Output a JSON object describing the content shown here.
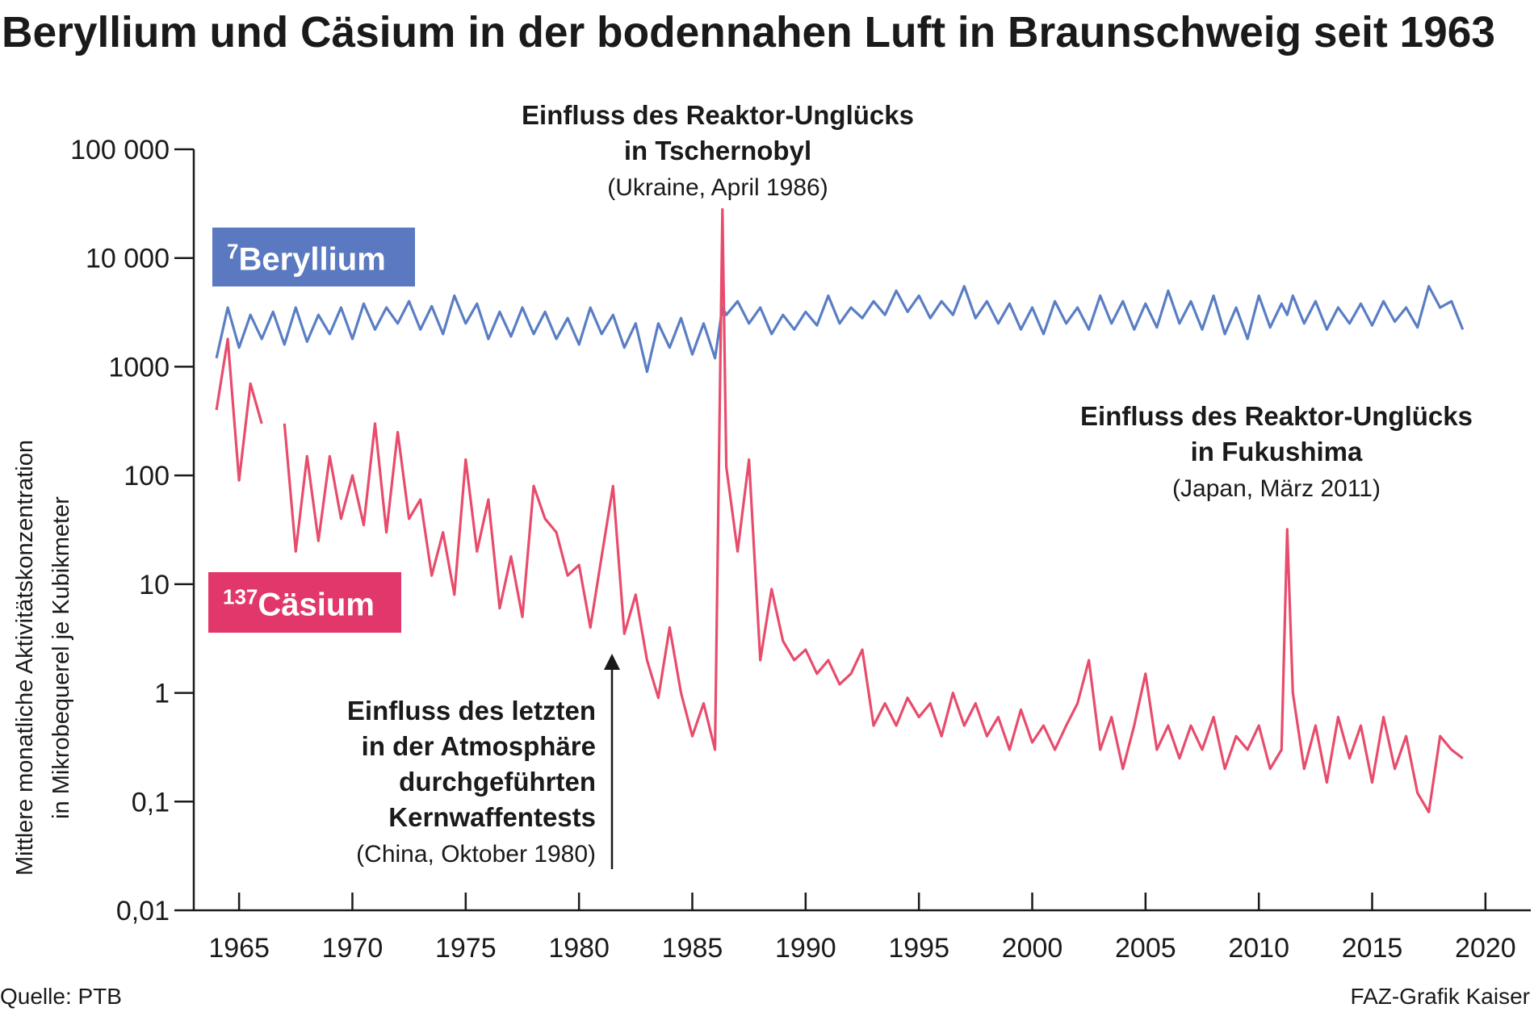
{
  "chart_data": {
    "type": "line",
    "title": "Beryllium und Cäsium in der bodennahen Luft in Braunschweig seit 1963",
    "y_label": [
      "Mittlere monatliche Aktivitätskonzentration",
      "in Mikrobequerel je Kubikmeter"
    ],
    "source": "Quelle: PTB",
    "credit": "FAZ-Grafik Kaiser",
    "log_y": true,
    "xlim": [
      1963,
      2022
    ],
    "xticks": [
      1965,
      1970,
      1975,
      1980,
      1985,
      1990,
      1995,
      2000,
      2005,
      2010,
      2015,
      2020
    ],
    "ylim": [
      0.01,
      100000
    ],
    "yticks": [
      {
        "value": 100000,
        "label": "100 000"
      },
      {
        "value": 10000,
        "label": "10 000"
      },
      1000,
      100,
      10,
      1,
      {
        "value": 0.1,
        "label": "0,1"
      },
      {
        "value": 0.01,
        "label": "0,01"
      }
    ],
    "annotations": [
      {
        "lines": [
          "Einfluss des Reaktor-Unglücks",
          "in Tschernobyl"
        ],
        "note": "(Ukraine, April 1986)"
      },
      {
        "lines": [
          "Einfluss des Reaktor-Unglücks",
          "in Fukushima"
        ],
        "note": "(Japan, März 2011)"
      },
      {
        "lines": [
          "Einfluss des letzten",
          "in der Atmosphäre",
          "durchgeführten",
          "Kernwaffentests"
        ],
        "note": "(China, Oktober 1980)"
      }
    ],
    "x": [
      1964.0,
      1964.5,
      1965.0,
      1965.5,
      1966.0,
      1966.5,
      1967.0,
      1967.5,
      1968.0,
      1968.5,
      1969.0,
      1969.5,
      1970.0,
      1970.5,
      1971.0,
      1971.5,
      1972.0,
      1972.5,
      1973.0,
      1973.5,
      1974.0,
      1974.5,
      1975.0,
      1975.5,
      1976.0,
      1976.5,
      1977.0,
      1977.5,
      1978.0,
      1978.5,
      1979.0,
      1979.5,
      1980.0,
      1980.5,
      1981.0,
      1981.5,
      1982.0,
      1982.5,
      1983.0,
      1983.5,
      1984.0,
      1984.5,
      1985.0,
      1985.5,
      1986.0,
      1986.33,
      1986.5,
      1987.0,
      1987.5,
      1988.0,
      1988.5,
      1989.0,
      1989.5,
      1990.0,
      1990.5,
      1991.0,
      1991.5,
      1992.0,
      1992.5,
      1993.0,
      1993.5,
      1994.0,
      1994.5,
      1995.0,
      1995.5,
      1996.0,
      1996.5,
      1997.0,
      1997.5,
      1998.0,
      1998.5,
      1999.0,
      1999.5,
      2000.0,
      2000.5,
      2001.0,
      2001.5,
      2002.0,
      2002.5,
      2003.0,
      2003.5,
      2004.0,
      2004.5,
      2005.0,
      2005.5,
      2006.0,
      2006.5,
      2007.0,
      2007.5,
      2008.0,
      2008.5,
      2009.0,
      2009.5,
      2010.0,
      2010.5,
      2011.0,
      2011.25,
      2011.5,
      2012.0,
      2012.5,
      2013.0,
      2013.5,
      2014.0,
      2014.5,
      2015.0,
      2015.5,
      2016.0,
      2016.5,
      2017.0,
      2017.5,
      2018.0,
      2018.5,
      2019.0
    ],
    "series": [
      {
        "mass_number": "7",
        "name": "Beryllium",
        "color": "#5a7ec4",
        "box_color": "#5a79c0",
        "values": [
          1200,
          3500,
          1500,
          3000,
          1800,
          3200,
          1600,
          3500,
          1700,
          3000,
          2000,
          3500,
          1800,
          3800,
          2200,
          3500,
          2500,
          4000,
          2200,
          3600,
          2000,
          4500,
          2500,
          3800,
          1800,
          3200,
          1900,
          3500,
          2000,
          3200,
          1800,
          2800,
          1600,
          3500,
          2000,
          3000,
          1500,
          2500,
          900,
          2500,
          1500,
          2800,
          1300,
          2500,
          1200,
          3500,
          3000,
          4000,
          2500,
          3500,
          2000,
          3000,
          2200,
          3200,
          2400,
          4500,
          2500,
          3500,
          2800,
          4000,
          3000,
          5000,
          3200,
          4500,
          2800,
          4000,
          3000,
          5500,
          2800,
          4000,
          2500,
          3800,
          2200,
          3500,
          2000,
          4000,
          2500,
          3500,
          2200,
          4500,
          2500,
          4000,
          2200,
          3800,
          2300,
          5000,
          2500,
          4000,
          2200,
          4500,
          2000,
          3500,
          1800,
          4500,
          2300,
          3800,
          3000,
          4500,
          2500,
          4000,
          2200,
          3500,
          2500,
          3800,
          2400,
          4000,
          2600,
          3500,
          2300,
          5500,
          3500,
          4000,
          2200
        ]
      },
      {
        "mass_number": "137",
        "name": "Cäsium",
        "color": "#e84c6c",
        "box_color": "#e2376a",
        "values": [
          400,
          1800,
          90,
          700,
          300,
          null,
          300,
          20,
          150,
          25,
          150,
          40,
          100,
          35,
          300,
          30,
          250,
          40,
          60,
          12,
          30,
          8,
          140,
          20,
          60,
          6,
          18,
          5,
          80,
          40,
          30,
          12,
          15,
          4,
          18,
          80,
          3.5,
          8,
          2,
          0.9,
          4,
          1,
          0.4,
          0.8,
          0.3,
          28000,
          120,
          20,
          140,
          2,
          9,
          3,
          2,
          2.5,
          1.5,
          2,
          1.2,
          1.5,
          2.5,
          0.5,
          0.8,
          0.5,
          0.9,
          0.6,
          0.8,
          0.4,
          1,
          0.5,
          0.8,
          0.4,
          0.6,
          0.3,
          0.7,
          0.35,
          0.5,
          0.3,
          0.5,
          0.8,
          2,
          0.3,
          0.6,
          0.2,
          0.5,
          1.5,
          0.3,
          0.5,
          0.25,
          0.5,
          0.3,
          0.6,
          0.2,
          0.4,
          0.3,
          0.5,
          0.2,
          0.3,
          32,
          1,
          0.2,
          0.5,
          0.15,
          0.6,
          0.25,
          0.5,
          0.15,
          0.6,
          0.2,
          0.4,
          0.12,
          0.08,
          0.4,
          0.3,
          0.25
        ]
      }
    ]
  }
}
